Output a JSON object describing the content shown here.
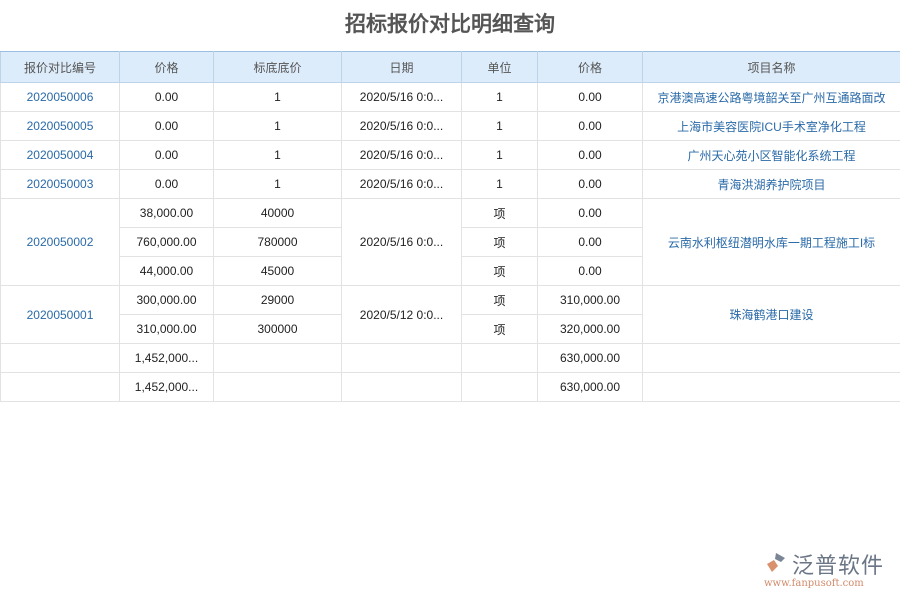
{
  "title": "招标报价对比明细查询",
  "columns": [
    "报价对比编号",
    "价格",
    "标底底价",
    "日期",
    "单位",
    "价格",
    "项目名称"
  ],
  "simple_rows": [
    {
      "id": "2020050006",
      "price": "0.00",
      "base": "1",
      "date": "2020/5/16 0:0...",
      "unit": "1",
      "price2": "0.00",
      "project": "京港澳高速公路粤境韶关至广州互通路面改"
    },
    {
      "id": "2020050005",
      "price": "0.00",
      "base": "1",
      "date": "2020/5/16 0:0...",
      "unit": "1",
      "price2": "0.00",
      "project": "上海市美容医院ICU手术室净化工程"
    },
    {
      "id": "2020050004",
      "price": "0.00",
      "base": "1",
      "date": "2020/5/16 0:0...",
      "unit": "1",
      "price2": "0.00",
      "project": "广州天心苑小区智能化系统工程"
    },
    {
      "id": "2020050003",
      "price": "0.00",
      "base": "1",
      "date": "2020/5/16 0:0...",
      "unit": "1",
      "price2": "0.00",
      "project": "青海洪湖养护院项目"
    }
  ],
  "group1": {
    "id": "2020050002",
    "date": "2020/5/16 0:0...",
    "project": "云南水利枢纽潜明水库一期工程施工I标",
    "lines": [
      {
        "price": "38,000.00",
        "base": "40000",
        "unit": "项",
        "price2": "0.00"
      },
      {
        "price": "760,000.00",
        "base": "780000",
        "unit": "项",
        "price2": "0.00"
      },
      {
        "price": "44,000.00",
        "base": "45000",
        "unit": "项",
        "price2": "0.00"
      }
    ]
  },
  "group2": {
    "id": "2020050001",
    "date": "2020/5/12 0:0...",
    "project": "珠海鹤港口建设",
    "lines": [
      {
        "price": "300,000.00",
        "base": "29000",
        "unit": "项",
        "price2": "310,000.00"
      },
      {
        "price": "310,000.00",
        "base": "300000",
        "unit": "项",
        "price2": "320,000.00"
      }
    ]
  },
  "totals": [
    {
      "price": "1,452,000...",
      "price2": "630,000.00"
    },
    {
      "price": "1,452,000...",
      "price2": "630,000.00"
    }
  ],
  "logo": {
    "name": "泛普软件",
    "url": "www.fanpusoft.com"
  }
}
